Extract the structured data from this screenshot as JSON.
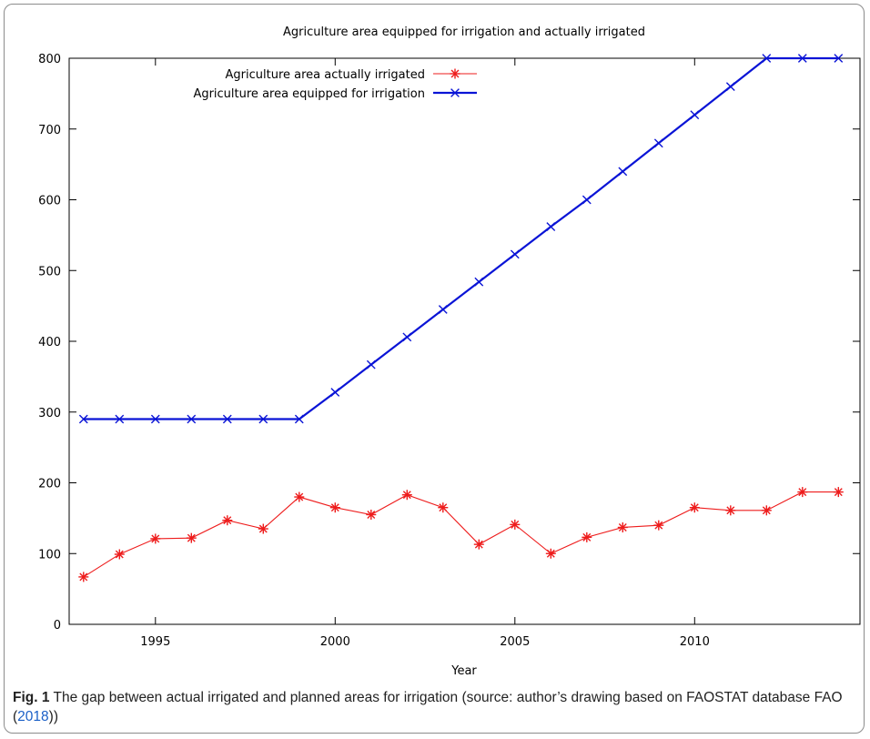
{
  "chart_data": {
    "type": "line",
    "title": "Agriculture area equipped for irrigation and actually irrigated",
    "xlabel": "Year",
    "ylabel": "",
    "xlim": [
      1992.6,
      2014.6
    ],
    "ylim": [
      0,
      800
    ],
    "x_ticks": [
      1995,
      2000,
      2005,
      2010
    ],
    "y_ticks": [
      0,
      100,
      200,
      300,
      400,
      500,
      600,
      700,
      800
    ],
    "grid": false,
    "legend": "top-left",
    "x": [
      1993,
      1994,
      1995,
      1996,
      1997,
      1998,
      1999,
      2000,
      2001,
      2002,
      2003,
      2004,
      2005,
      2006,
      2007,
      2008,
      2009,
      2010,
      2011,
      2012,
      2013,
      2014
    ],
    "series": [
      {
        "name": "Agriculture area actually irrigated",
        "color": "#ee1c1c",
        "marker": "asterisk",
        "values": [
          67,
          99,
          121,
          122,
          147,
          135,
          180,
          165,
          155,
          183,
          165,
          113,
          141,
          100,
          123,
          137,
          140,
          165,
          161,
          161,
          187,
          187
        ]
      },
      {
        "name": "Agriculture area equipped for irrigation",
        "color": "#0a14d6",
        "marker": "cross",
        "values": [
          290,
          290,
          290,
          290,
          290,
          290,
          290,
          328,
          367,
          406,
          445,
          484,
          523,
          562,
          600,
          640,
          680,
          720,
          760,
          800,
          800,
          800
        ]
      }
    ]
  },
  "caption": {
    "label": "Fig. 1",
    "text": "The gap between actual irrigated and planned areas for irrigation (source: author’s drawing based on FAOSTAT database FAO (",
    "link": "2018",
    "end": "))"
  }
}
